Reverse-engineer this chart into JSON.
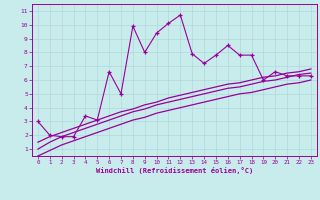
{
  "xlabel": "Windchill (Refroidissement éolien,°C)",
  "bg_color": "#c8ecec",
  "grid_color": "#b0d8d8",
  "line_color": "#990099",
  "xlim": [
    -0.5,
    23.5
  ],
  "ylim": [
    0.5,
    11.5
  ],
  "xtick_vals": [
    0,
    1,
    2,
    3,
    4,
    5,
    6,
    7,
    8,
    9,
    10,
    11,
    12,
    13,
    14,
    15,
    16,
    17,
    18,
    19,
    20,
    21,
    22,
    23
  ],
  "xtick_labels": [
    "0",
    "1",
    "2",
    "3",
    "4",
    "5",
    "6",
    "7",
    "8",
    "9",
    "10",
    "11",
    "12",
    "13",
    "14",
    "15",
    "16",
    "17",
    "18",
    "19",
    "20",
    "21",
    "22",
    "23"
  ],
  "ytick_vals": [
    1,
    2,
    3,
    4,
    5,
    6,
    7,
    8,
    9,
    10,
    11
  ],
  "ytick_labels": [
    "1",
    "2",
    "3",
    "4",
    "5",
    "6",
    "7",
    "8",
    "9",
    "10",
    "11"
  ],
  "series1_x": [
    0,
    1,
    2,
    3,
    4,
    5,
    6,
    7,
    8,
    9,
    10,
    11,
    12,
    13,
    14,
    15,
    16,
    17,
    18,
    19,
    20,
    21,
    22,
    23
  ],
  "series1_y": [
    3.0,
    2.0,
    1.9,
    1.9,
    3.4,
    3.1,
    6.6,
    5.0,
    9.9,
    8.0,
    9.4,
    10.1,
    10.7,
    7.9,
    7.2,
    7.8,
    8.5,
    7.8,
    7.8,
    6.0,
    6.6,
    6.3,
    6.3,
    6.3
  ],
  "curve1_x": [
    0,
    1,
    2,
    3,
    4,
    5,
    6,
    7,
    8,
    9,
    10,
    11,
    12,
    13,
    14,
    15,
    16,
    17,
    18,
    19,
    20,
    21,
    22,
    23
  ],
  "curve1_y": [
    0.5,
    0.9,
    1.3,
    1.6,
    1.9,
    2.2,
    2.5,
    2.8,
    3.1,
    3.3,
    3.6,
    3.8,
    4.0,
    4.2,
    4.4,
    4.6,
    4.8,
    5.0,
    5.1,
    5.3,
    5.5,
    5.7,
    5.8,
    6.0
  ],
  "curve2_x": [
    0,
    1,
    2,
    3,
    4,
    5,
    6,
    7,
    8,
    9,
    10,
    11,
    12,
    13,
    14,
    15,
    16,
    17,
    18,
    19,
    20,
    21,
    22,
    23
  ],
  "curve2_y": [
    1.0,
    1.5,
    1.9,
    2.2,
    2.5,
    2.8,
    3.1,
    3.4,
    3.7,
    3.9,
    4.2,
    4.4,
    4.6,
    4.8,
    5.0,
    5.2,
    5.4,
    5.5,
    5.7,
    5.9,
    6.0,
    6.2,
    6.4,
    6.5
  ],
  "curve3_x": [
    0,
    1,
    2,
    3,
    4,
    5,
    6,
    7,
    8,
    9,
    10,
    11,
    12,
    13,
    14,
    15,
    16,
    17,
    18,
    19,
    20,
    21,
    22,
    23
  ],
  "curve3_y": [
    1.5,
    1.9,
    2.2,
    2.5,
    2.8,
    3.1,
    3.4,
    3.7,
    3.9,
    4.2,
    4.4,
    4.7,
    4.9,
    5.1,
    5.3,
    5.5,
    5.7,
    5.8,
    6.0,
    6.2,
    6.3,
    6.5,
    6.6,
    6.8
  ]
}
